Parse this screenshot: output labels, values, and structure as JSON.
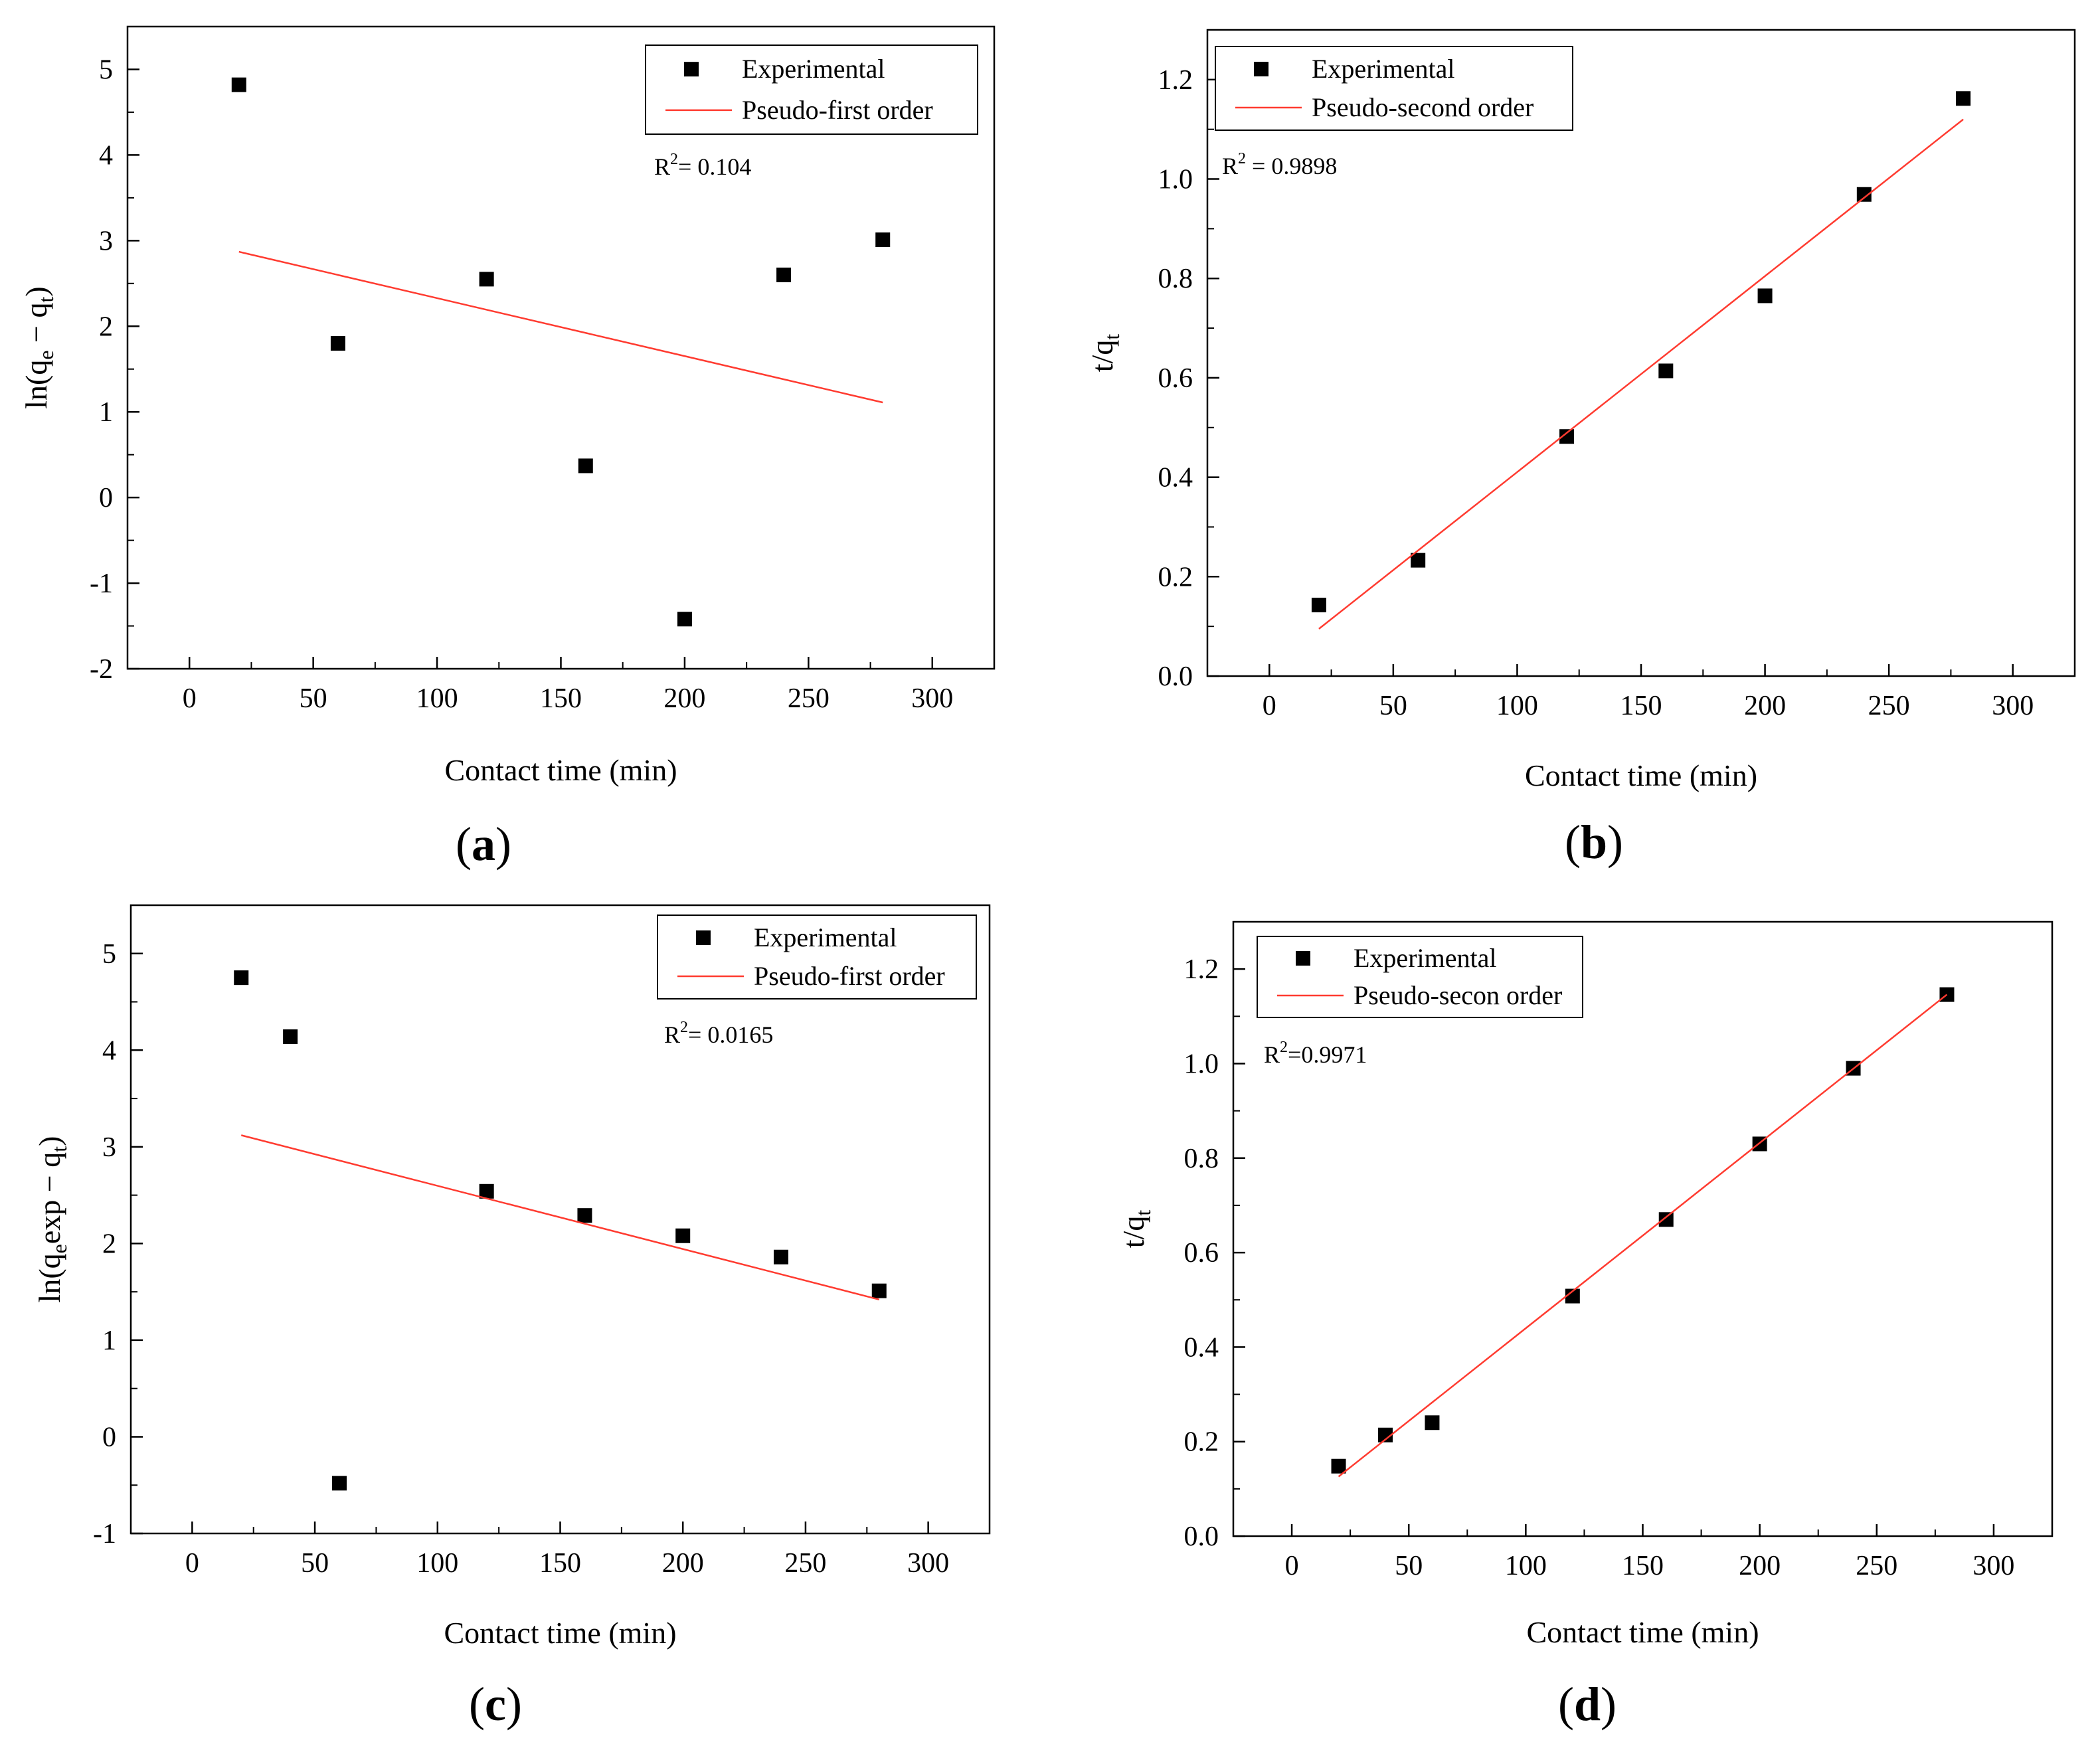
{
  "figure": {
    "colors": {
      "points": "#000000",
      "fit_line": "#ff3b30",
      "axes": "#000000"
    }
  },
  "chart_data": [
    {
      "id": "a",
      "type": "scatter",
      "panel_label": "a",
      "xlabel": "Contact time (min)",
      "ylabel_parts": [
        "ln(q",
        "e",
        " − q",
        "t",
        ")"
      ],
      "xlim": [
        -25,
        325
      ],
      "ylim": [
        -2,
        5.5
      ],
      "xticks": [
        0,
        50,
        100,
        150,
        200,
        250,
        300
      ],
      "yticks": [
        -2,
        -1,
        0,
        1,
        2,
        3,
        4,
        5
      ],
      "ytick_decimals": 0,
      "series": [
        {
          "name": "Experimental",
          "kind": "scatter",
          "x": [
            20,
            60,
            120,
            160,
            200,
            240,
            280
          ],
          "y": [
            4.82,
            1.8,
            2.55,
            0.37,
            -1.42,
            2.6,
            3.01
          ]
        },
        {
          "name": "Pseudo-first order",
          "kind": "line",
          "x": [
            20,
            280
          ],
          "y": [
            2.87,
            1.11
          ]
        }
      ],
      "annotation": {
        "prefix": "R",
        "sup": "2",
        "value": "= 0.104"
      },
      "legend": {
        "position": "top-right"
      }
    },
    {
      "id": "b",
      "type": "scatter",
      "panel_label": "b",
      "xlabel": "Contact time (min)",
      "ylabel_parts": [
        "t/q",
        "t"
      ],
      "xlim": [
        -25,
        325
      ],
      "ylim": [
        0,
        1.3
      ],
      "xticks": [
        0,
        50,
        100,
        150,
        200,
        250,
        300
      ],
      "yticks": [
        0.0,
        0.2,
        0.4,
        0.6,
        0.8,
        1.0,
        1.2
      ],
      "ytick_decimals": 1,
      "series": [
        {
          "name": "Experimental",
          "kind": "scatter",
          "x": [
            20,
            60,
            120,
            160,
            200,
            240,
            280
          ],
          "y": [
            0.143,
            0.233,
            0.482,
            0.614,
            0.765,
            0.969,
            1.162
          ]
        },
        {
          "name": "Pseudo-second order",
          "kind": "line",
          "x": [
            20,
            280
          ],
          "y": [
            0.095,
            1.12
          ]
        }
      ],
      "annotation": {
        "prefix": "R",
        "sup": "2",
        "value": " = 0.9898"
      },
      "legend": {
        "position": "top-left"
      }
    },
    {
      "id": "c",
      "type": "scatter",
      "panel_label": "c",
      "xlabel": "Contact time (min)",
      "ylabel_parts": [
        "ln(q",
        "e",
        "exp − q",
        "t",
        ")"
      ],
      "xlim": [
        -25,
        325
      ],
      "ylim": [
        -1,
        5.5
      ],
      "xticks": [
        0,
        50,
        100,
        150,
        200,
        250,
        300
      ],
      "yticks": [
        -1,
        0,
        1,
        2,
        3,
        4,
        5
      ],
      "ytick_decimals": 0,
      "series": [
        {
          "name": "Experimental",
          "kind": "scatter",
          "x": [
            20,
            40,
            60,
            120,
            160,
            200,
            240,
            280
          ],
          "y": [
            4.75,
            4.14,
            -0.48,
            2.54,
            2.29,
            2.08,
            1.86,
            1.51
          ]
        },
        {
          "name": "Pseudo-first order",
          "kind": "line",
          "x": [
            20,
            280
          ],
          "y": [
            3.12,
            1.42
          ]
        }
      ],
      "annotation": {
        "prefix": "R",
        "sup": "2",
        "value": "= 0.0165"
      },
      "legend": {
        "position": "top-right"
      }
    },
    {
      "id": "d",
      "type": "scatter",
      "panel_label": "d",
      "xlabel": "Contact time (min)",
      "ylabel_parts": [
        "t/q",
        "t"
      ],
      "xlim": [
        -25,
        325
      ],
      "ylim": [
        0,
        1.3
      ],
      "xticks": [
        0,
        50,
        100,
        150,
        200,
        250,
        300
      ],
      "yticks": [
        0.0,
        0.2,
        0.4,
        0.6,
        0.8,
        1.0,
        1.2
      ],
      "ytick_decimals": 1,
      "series": [
        {
          "name": "Experimental",
          "kind": "scatter",
          "x": [
            20,
            40,
            60,
            120,
            160,
            200,
            240,
            280
          ],
          "y": [
            0.148,
            0.214,
            0.24,
            0.508,
            0.67,
            0.83,
            0.99,
            1.146
          ]
        },
        {
          "name": "Pseudo-secon order",
          "kind": "line",
          "x": [
            20,
            280
          ],
          "y": [
            0.126,
            1.146
          ]
        }
      ],
      "annotation": {
        "prefix": "R",
        "sup": "2",
        "value": "=0.9971"
      },
      "legend": {
        "position": "top-left"
      }
    }
  ]
}
